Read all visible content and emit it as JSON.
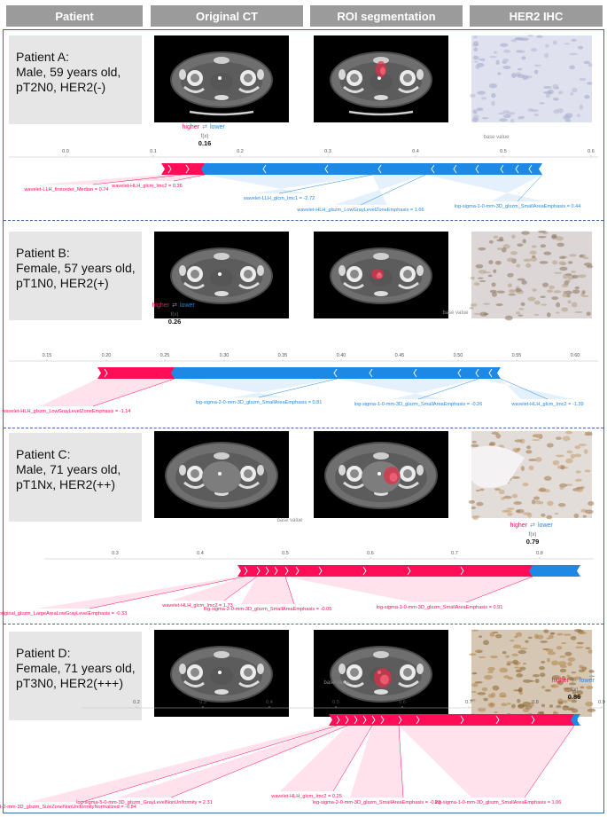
{
  "headers": {
    "patient": "Patient",
    "original_ct": "Original CT",
    "roi": "ROI segmentation",
    "her2": "HER2 IHC"
  },
  "colors": {
    "header_bg": "#9b9b9b",
    "frame": "#3f66a8",
    "higher": "#ff0d57",
    "lower": "#1e88e5"
  },
  "labels": {
    "higher": "higher",
    "lower": "lower",
    "fx": "f(x)",
    "base_value": "base value",
    "swap_icon": "arrow-swap-icon"
  },
  "patients": [
    {
      "title": "Patient A:",
      "line1": "Male, 59 years old,",
      "line2": "pT2N0, HER2(-)",
      "fx": "0.16",
      "ticks": [
        "0.0",
        "0.1",
        "0.2",
        "0.3",
        "0.4",
        "0.5",
        "0.6"
      ],
      "features": [
        "wavelet-LLH_firstorder_Median = 0.74",
        "wavelet-HLH_glcm_Imc2 = 0.36",
        "wavelet-LLH_glcm_Imc1 = -2.72",
        "wavelet-HLH_glszm_LowGrayLevelZoneEmphasis = 1.66",
        "log-sigma-1-0-mm-3D_glszm_SmallAreaEmphasis = 0.44"
      ]
    },
    {
      "title": "Patient B:",
      "line1": "Female, 57 years old,",
      "line2": "pT1N0, HER2(+)",
      "fx": "0.26",
      "ticks": [
        "0.15",
        "0.20",
        "0.25",
        "0.30",
        "0.35",
        "0.40",
        "0.45",
        "0.50",
        "0.55",
        "0.60"
      ],
      "features": [
        "wavelet-HLH_glszm_LowGrayLevelZoneEmphasis = -1.14",
        "log-sigma-2-0-mm-3D_glszm_SmallAreaEmphasis = 0.81",
        "log-sigma-1-0-mm-3D_glszm_SmallAreaEmphasis = -0.26",
        "wavelet-HLH_glcm_Imc2 = -1.39"
      ]
    },
    {
      "title": "Patient C:",
      "line1": "Male, 71 years old,",
      "line2": "pT1Nx, HER2(++)",
      "fx": "0.79",
      "ticks": [
        "0.3",
        "0.4",
        "0.5",
        "0.6",
        "0.7",
        "0.8"
      ],
      "features": [
        "original_glszm_LargeAreaLowGrayLevelEmphasis = -0.33",
        "wavelet-HLH_glcm_Imc2 = 1.73",
        "log-sigma-2-0-mm-3D_glszm_SmallAreaEmphasis = -0.05",
        "log-sigma-1-0-mm-3D_glszm_SmallAreaEmphasis = 0.91"
      ]
    },
    {
      "title": "Patient D:",
      "line1": "Female, 71 years old,",
      "line2": "pT3N0, HER2(+++)",
      "fx": "0.86",
      "ticks": [
        "0.2",
        "0.3",
        "0.4",
        "0.5",
        "0.6",
        "0.7",
        "0.8",
        "0.9"
      ],
      "features": [
        "log-sigma-4-0-mm-3D_glszm_SizeZoneNonUniformityNormalized = -0.84",
        "log-sigma-5-0-mm-3D_glszm_GrayLevelNonUniformity = 2.31",
        "wavelet-HLH_glcm_Imc2 = 0.25",
        "log-sigma-2-0-mm-3D_glszm_SmallAreaEmphasis = -0.23",
        "log-sigma-1-0-mm-3D_glszm_SmallAreaEmphasis = 1.06"
      ]
    }
  ]
}
